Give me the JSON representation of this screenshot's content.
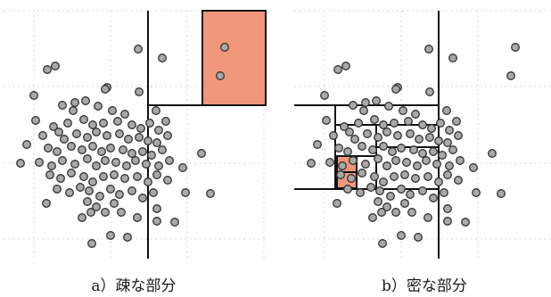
{
  "captions": {
    "a": "a）疎な部分",
    "b": "b）密な部分"
  },
  "colors": {
    "highlight_fill": "#f0967a",
    "point_fill": "#a8a8a8",
    "point_stroke": "#333333",
    "grid": "#c9c9c9",
    "division_line": "#111111"
  }
}
